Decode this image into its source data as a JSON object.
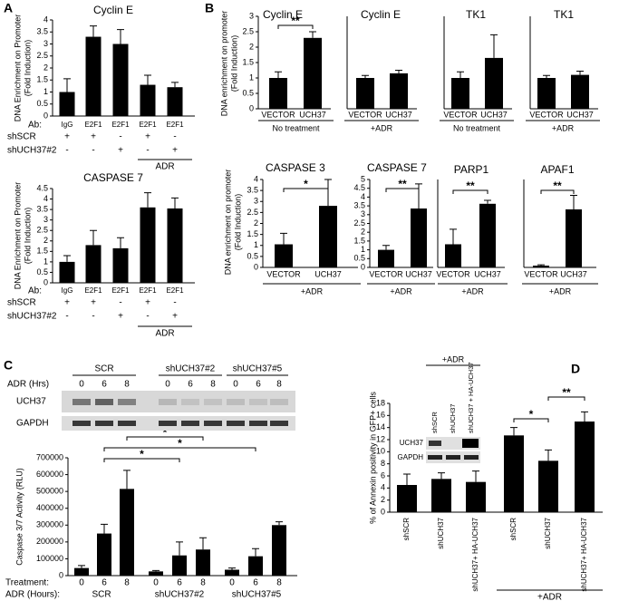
{
  "panel_labels": [
    "A",
    "B",
    "C",
    "D"
  ],
  "chart_data": [
    {
      "type": "bar",
      "title": "Cyclin E",
      "y_label": [
        "DNA Enrichment on Promoter",
        "(Fold Induction)"
      ],
      "category_label": "Ab:",
      "categories": [
        "IgG",
        "E2F1",
        "E2F1",
        "E2F1",
        "E2F1"
      ],
      "values": [
        1.0,
        3.3,
        3.0,
        1.3,
        1.2
      ],
      "errors": [
        0.55,
        0.45,
        0.6,
        0.4,
        0.2
      ],
      "color": "#000000",
      "ylim": [
        0,
        4
      ],
      "yticks": [
        0,
        0.5,
        1,
        1.5,
        2,
        2.5,
        3,
        3.5,
        4
      ],
      "rows": [
        {
          "label": "shSCR",
          "cells": [
            "+",
            "+",
            "-",
            "+",
            "-"
          ]
        },
        {
          "label": "shUCH37#2",
          "cells": [
            "-",
            "-",
            "+",
            "-",
            "+"
          ]
        }
      ],
      "group_label": "ADR"
    },
    {
      "type": "bar",
      "title": "CASPASE 7",
      "y_label": [
        "DNA Enrichment on Promoter",
        "(Fold Induction)"
      ],
      "category_label": "Ab:",
      "categories": [
        "IgG",
        "E2F1",
        "E2F1",
        "E2F1",
        "E2F1"
      ],
      "values": [
        1.0,
        1.8,
        1.65,
        3.6,
        3.55
      ],
      "errors": [
        0.3,
        0.7,
        0.5,
        0.7,
        0.5
      ],
      "color": "#000000",
      "ylim": [
        0,
        4.5
      ],
      "yticks": [
        0,
        0.5,
        1,
        1.5,
        2,
        2.5,
        3,
        3.5,
        4,
        4.5
      ],
      "rows": [
        {
          "label": "shSCR",
          "cells": [
            "+",
            "+",
            "-",
            "+",
            "-"
          ]
        },
        {
          "label": "shUCH37#2",
          "cells": [
            "-",
            "-",
            "+",
            "-",
            "+"
          ]
        }
      ],
      "group_label": "ADR"
    },
    {
      "type": "bar",
      "title": "Cyclin E",
      "y_label": [
        "DNA enrichment on promoter",
        "(Fold Induction)"
      ],
      "categories": [
        "VECTOR",
        "UCH37"
      ],
      "values": [
        1.0,
        2.3
      ],
      "errors": [
        0.2,
        0.2
      ],
      "color": "#000000",
      "ylim": [
        0,
        3
      ],
      "yticks": [
        0,
        0.5,
        1,
        1.5,
        2,
        2.5,
        3
      ],
      "footer": "No treatment",
      "significance": [
        "**"
      ]
    },
    {
      "type": "bar",
      "title": "Cyclin E",
      "categories": [
        "VECTOR",
        "UCH37"
      ],
      "values": [
        1.0,
        1.15
      ],
      "errors": [
        0.08,
        0.1
      ],
      "color": "#000000",
      "ylim": [
        0,
        3
      ],
      "footer": "+ADR"
    },
    {
      "type": "bar",
      "title": "TK1",
      "categories": [
        "VECTOR",
        "UCH37"
      ],
      "values": [
        1.0,
        1.65
      ],
      "errors": [
        0.2,
        0.75
      ],
      "color": "#000000",
      "ylim": [
        0,
        3
      ],
      "footer": "No treatment"
    },
    {
      "type": "bar",
      "title": "TK1",
      "categories": [
        "VECTOR",
        "UCH37"
      ],
      "values": [
        1.0,
        1.1
      ],
      "errors": [
        0.08,
        0.12
      ],
      "color": "#000000",
      "ylim": [
        0,
        3
      ],
      "footer": "+ADR"
    },
    {
      "type": "bar",
      "title": "CASPASE  3",
      "y_label": [
        "DNA enrichment on promoter",
        "(Fold Induction)"
      ],
      "categories": [
        "VECTOR",
        "UCH37"
      ],
      "values": [
        1.05,
        2.8
      ],
      "errors": [
        0.5,
        1.2
      ],
      "color": "#000000",
      "ylim": [
        0,
        4
      ],
      "yticks": [
        0,
        0.5,
        1,
        1.5,
        2,
        2.5,
        3,
        3.5,
        4
      ],
      "footer": "+ADR",
      "significance": [
        "*"
      ]
    },
    {
      "type": "bar",
      "title": "CASPASE  7",
      "categories": [
        "VECTOR",
        "UCH37"
      ],
      "values": [
        1.0,
        3.35
      ],
      "errors": [
        0.25,
        1.4
      ],
      "color": "#000000",
      "ylim": [
        0,
        5
      ],
      "yticks": [
        0,
        0.5,
        1,
        1.5,
        2,
        2.5,
        3,
        3.5,
        4,
        4.5,
        5
      ],
      "footer": "+ADR",
      "significance": [
        "**"
      ]
    },
    {
      "type": "bar",
      "title": "PARP1",
      "categories": [
        "VECTOR",
        "UCH37"
      ],
      "values": [
        1.0,
        2.75
      ],
      "errors": [
        0.65,
        0.15
      ],
      "color": "#000000",
      "ylim": [
        0,
        3.8
      ],
      "footer": "+ADR",
      "significance": [
        "**"
      ]
    },
    {
      "type": "bar",
      "title": "APAF1",
      "categories": [
        "VECTOR",
        "UCH37"
      ],
      "values": [
        1,
        33
      ],
      "errors": [
        0.5,
        8
      ],
      "color": "#000000",
      "ylim": [
        0,
        50
      ],
      "footer": "+ADR",
      "significance": [
        "**"
      ]
    },
    {
      "type": "bar",
      "y_label": [
        "Caspase 3/7 Activity (RLU)"
      ],
      "category_label": "Treatment:",
      "categories": [
        "0",
        "6",
        "8",
        "0",
        "6",
        "8",
        "0",
        "6",
        "8"
      ],
      "values": [
        45000,
        250000,
        515000,
        25000,
        120000,
        155000,
        35000,
        115000,
        300000
      ],
      "errors": [
        15000,
        55000,
        110000,
        5000,
        80000,
        70000,
        10000,
        45000,
        20000
      ],
      "color": "#000000",
      "ylim": [
        0,
        700000
      ],
      "yticks": [
        0,
        100000,
        200000,
        300000,
        400000,
        500000,
        600000,
        700000
      ],
      "group_row_label": "ADR (Hours):",
      "groups": [
        "SCR",
        "shUCH37#2",
        "shUCH37#5"
      ],
      "significance": [
        "*",
        "*",
        "*",
        "*"
      ]
    },
    {
      "type": "bar",
      "y_label": [
        "% of Annexin positivity in GFP+ cells"
      ],
      "categories": [
        "shSCR",
        "shUCH37",
        "shUCH37+ HA-UCH37",
        "shSCR",
        "shUCH37",
        "shUCH37+ HA-UCH37"
      ],
      "values": [
        4.5,
        5.5,
        5.0,
        12.7,
        8.5,
        15
      ],
      "errors": [
        1.8,
        1.0,
        1.8,
        1.3,
        1.8,
        1.6
      ],
      "color": "#000000",
      "ylim": [
        0,
        18
      ],
      "yticks": [
        0,
        2,
        4,
        6,
        8,
        10,
        12,
        14,
        16,
        18
      ],
      "group_label": "+ADR",
      "significance": [
        "*",
        "**"
      ]
    }
  ],
  "blots": [
    {
      "lane_groups": [
        "SCR",
        "shUCH37#2",
        "shUCH37#5"
      ],
      "lane_label": "ADR (Hrs)",
      "lanes": [
        "0",
        "6",
        "8",
        "0",
        "6",
        "8",
        "0",
        "6",
        "8"
      ],
      "rows": [
        "UCH37",
        "GAPDH"
      ]
    },
    {
      "treatment": "+ADR",
      "lanes": [
        "shSCR",
        "shUCH37",
        "shUCH37 + HA-UCH37"
      ],
      "rows": [
        "UCH37",
        "GAPDH"
      ]
    }
  ]
}
